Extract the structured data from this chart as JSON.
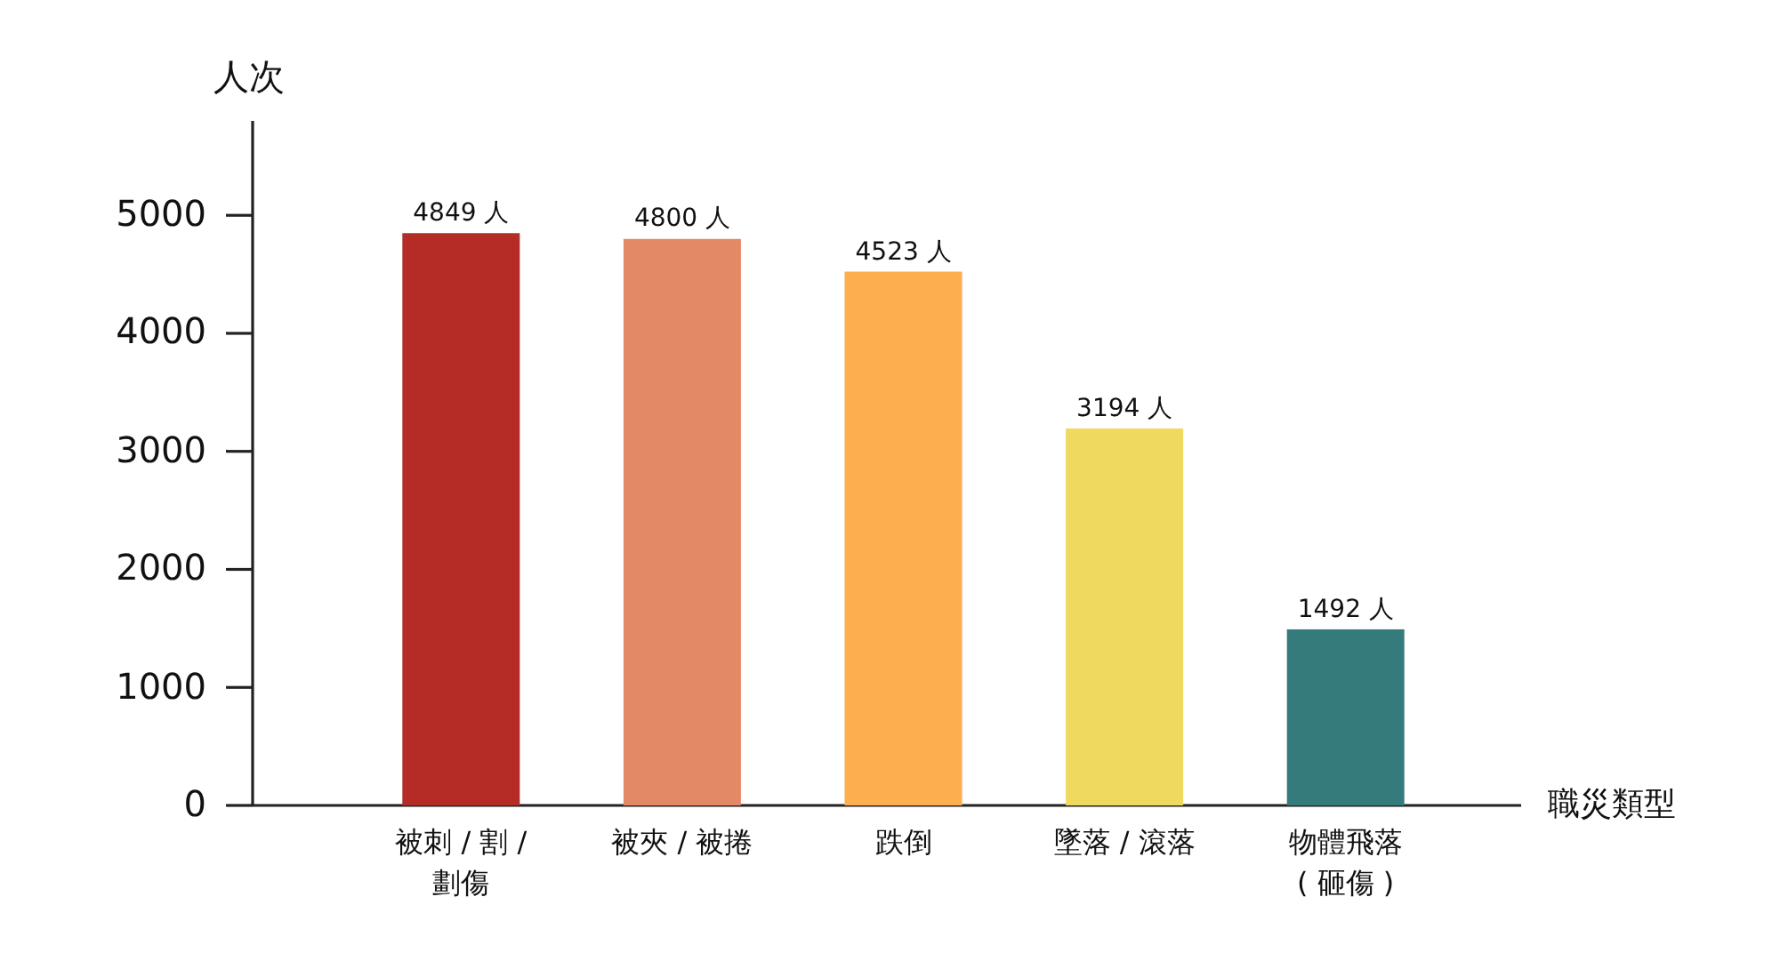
{
  "chart_data": {
    "type": "bar",
    "ylabel": "人次",
    "xlabel": "職災類型",
    "categories": [
      "被刺 / 割 /\n劃傷",
      "被夾 / 被捲",
      "跌倒",
      "墜落 / 滾落",
      "物體飛落\n( 砸傷 )"
    ],
    "values": [
      4849,
      4800,
      4523,
      3194,
      1492
    ],
    "colors": [
      "#b52b25",
      "#e38966",
      "#fdae4e",
      "#efd95f",
      "#367b7b"
    ],
    "value_labels": [
      "4849 人",
      "4800 人",
      "4523 人",
      "3194 人",
      "1492 人"
    ],
    "ylim": [
      0,
      5800
    ],
    "yticks": [
      0,
      1000,
      2000,
      3000,
      4000,
      5000
    ]
  }
}
